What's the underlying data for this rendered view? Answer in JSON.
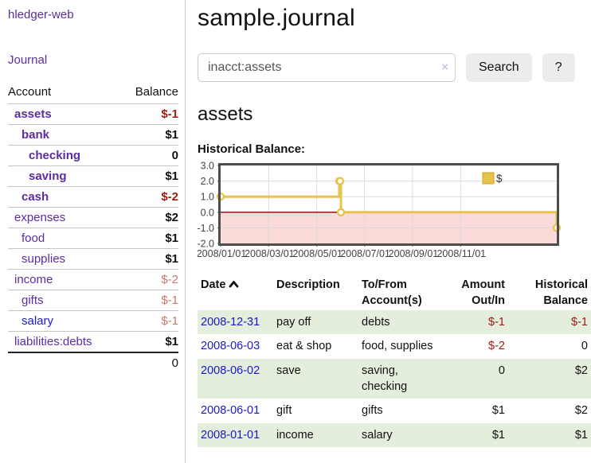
{
  "app": {
    "title": "hledger-web",
    "nav_journal": "Journal"
  },
  "sidebar": {
    "headers": {
      "account": "Account",
      "balance": "Balance"
    },
    "accounts": [
      {
        "name": "assets",
        "level": 0,
        "bold": true,
        "link_color": "purple",
        "balance": "$-1",
        "balance_style": "neg-strong"
      },
      {
        "name": "bank",
        "level": 1,
        "bold": true,
        "link_color": "purple",
        "balance": "$1",
        "balance_style": "normal"
      },
      {
        "name": "checking",
        "level": 2,
        "bold": true,
        "link_color": "purple",
        "balance": "0",
        "balance_style": "normal"
      },
      {
        "name": "saving",
        "level": 2,
        "bold": true,
        "link_color": "purple",
        "balance": "$1",
        "balance_style": "normal"
      },
      {
        "name": "cash",
        "level": 1,
        "bold": true,
        "link_color": "purple",
        "balance": "$-2",
        "balance_style": "neg-strong"
      },
      {
        "name": "expenses",
        "level": 0,
        "bold": false,
        "link_color": "purple",
        "balance": "$2",
        "balance_style": "normal"
      },
      {
        "name": "food",
        "level": 1,
        "bold": false,
        "link_color": "purple",
        "balance": "$1",
        "balance_style": "normal"
      },
      {
        "name": "supplies",
        "level": 1,
        "bold": false,
        "link_color": "purple",
        "balance": "$1",
        "balance_style": "normal"
      },
      {
        "name": "income",
        "level": 0,
        "bold": false,
        "link_color": "purple",
        "balance": "$-2",
        "balance_style": "neg-light"
      },
      {
        "name": "gifts",
        "level": 1,
        "bold": false,
        "link_color": "purple",
        "balance": "$-1",
        "balance_style": "neg-light"
      },
      {
        "name": "salary",
        "level": 1,
        "bold": false,
        "link_color": "blue",
        "balance": "$-1",
        "balance_style": "neg-light"
      },
      {
        "name": "liabilities:debts",
        "level": 0,
        "bold": false,
        "link_color": "purple",
        "balance": "$1",
        "balance_style": "normal"
      }
    ],
    "total": "0"
  },
  "header": {
    "title": "sample.journal"
  },
  "search": {
    "value": "inacct:assets",
    "clear_icon": "×",
    "button_label": "Search",
    "help_label": "?"
  },
  "account_page": {
    "heading": "assets",
    "chart_title": "Historical Balance:"
  },
  "chart_data": {
    "type": "line",
    "title": "Historical Balance of assets",
    "series": [
      {
        "name": "$",
        "step": true,
        "points": [
          {
            "date": "2008-01-01",
            "value": 1
          },
          {
            "date": "2008-06-01",
            "value": 2
          },
          {
            "date": "2008-06-02",
            "value": 2
          },
          {
            "date": "2008-06-03",
            "value": 0
          },
          {
            "date": "2008-12-31",
            "value": -1
          }
        ]
      }
    ],
    "x_ticks": [
      "2008/01/01",
      "2008/03/01",
      "2008/05/01",
      "2008/07/01",
      "2008/09/01",
      "2008/11/01"
    ],
    "y_ticks": [
      "3.0",
      "2.0",
      "1.0",
      "0.0",
      "-1.0",
      "-2.0"
    ],
    "ylim": [
      -2,
      3
    ],
    "legend": {
      "label": "$",
      "position": "top-right"
    },
    "grid": true,
    "line_color": "#e8c24a",
    "marker_fill": "#ffffff",
    "zero_line_color": "#8b0000",
    "negative_region_fill": "#fbdada",
    "x_frac_hint": {
      "points": [
        0,
        0.353,
        0.3555,
        0.358,
        1.0
      ],
      "ticks": [
        0,
        0.143,
        0.286,
        0.428,
        0.571,
        0.714
      ]
    }
  },
  "transactions": {
    "headers": {
      "date": "Date",
      "description": "Description",
      "accounts": "To/From Account(s)",
      "amount": "Amount Out/In",
      "balance": "Historical Balance"
    },
    "rows": [
      {
        "date": "2008-12-31",
        "description": "pay off",
        "accounts": "debts",
        "amount": "$-1",
        "amount_negative": true,
        "balance": "$-1",
        "balance_negative": true,
        "shaded": true
      },
      {
        "date": "2008-06-03",
        "description": "eat & shop",
        "accounts": "food, supplies",
        "amount": "$-2",
        "amount_negative": true,
        "balance": "0",
        "balance_negative": false,
        "shaded": false
      },
      {
        "date": "2008-06-02",
        "description": "save",
        "accounts": "saving, checking",
        "amount": "0",
        "amount_negative": false,
        "balance": "$2",
        "balance_negative": false,
        "shaded": true
      },
      {
        "date": "2008-06-01",
        "description": "gift",
        "accounts": "gifts",
        "amount": "$1",
        "amount_negative": false,
        "balance": "$2",
        "balance_negative": false,
        "shaded": false
      },
      {
        "date": "2008-01-01",
        "description": "income",
        "accounts": "salary",
        "amount": "$1",
        "amount_negative": false,
        "balance": "$1",
        "balance_negative": false,
        "shaded": true
      }
    ]
  },
  "colors": {
    "link_purple": "#5b2da0",
    "link_blue": "#1b18c9",
    "negative_strong": "#9d1c12",
    "negative_light": "#c9786e",
    "row_shade_green": "#e3eedd",
    "chart_yellow": "#e8c24a",
    "chart_negative_pink": "#fbdada",
    "zero_line_red": "#8b0000",
    "button_gray": "#ececec"
  }
}
